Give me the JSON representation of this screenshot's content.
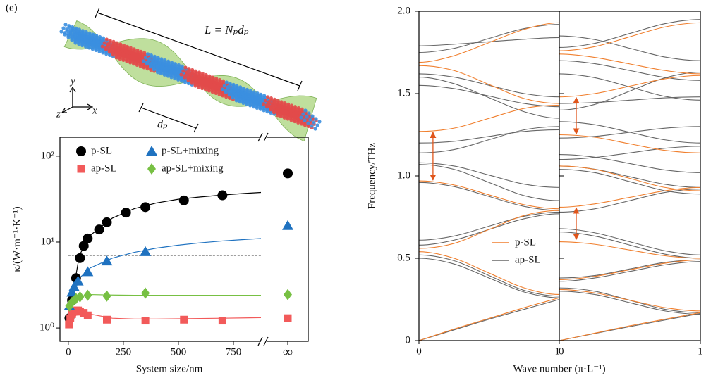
{
  "schematic": {
    "panel_label": "(e)",
    "length_label": "L = Nₚdₚ",
    "period_label": "dₚ",
    "axis_x": "x",
    "axis_y": "y",
    "axis_z": "z"
  },
  "chart_data": [
    {
      "type": "scatter",
      "ylog": true,
      "xlabel": "System size/nm",
      "ylabel": "κ/(W·m⁻¹·K⁻¹)",
      "xlim": [
        -38,
        875
      ],
      "xticks": [
        0,
        250,
        500,
        750
      ],
      "x_inf_label": "∞",
      "ylim": [
        0.7,
        166
      ],
      "yticks": [
        {
          "value": 1,
          "label": "10⁰"
        },
        {
          "value": 10,
          "label": "10¹"
        },
        {
          "value": 100,
          "label": "10²"
        }
      ],
      "reference_line": 7,
      "series": [
        {
          "name": "p-SL",
          "color": "#000000",
          "marker": "circle",
          "x": [
            5,
            17,
            35,
            53,
            70,
            88,
            140,
            175,
            262,
            350,
            525,
            700
          ],
          "values": [
            1.3,
            2.1,
            3.8,
            6.5,
            9,
            11,
            14,
            17,
            22,
            25.5,
            30.5,
            35
          ],
          "inf_value": 63,
          "fit_x": [
            0,
            50,
            100,
            200,
            300,
            400,
            500,
            600,
            700,
            800,
            875
          ],
          "fit_values": [
            1.2,
            7,
            12,
            19,
            24.5,
            28.5,
            31.5,
            33.5,
            35.3,
            36.8,
            37.8
          ]
        },
        {
          "name": "ap-SL",
          "color": "#f25a5a",
          "marker": "square",
          "x": [
            3,
            9,
            17,
            26,
            35,
            44,
            53,
            70,
            88,
            175,
            350,
            525,
            700
          ],
          "values": [
            1.1,
            1.3,
            1.45,
            1.55,
            1.6,
            1.6,
            1.55,
            1.5,
            1.4,
            1.25,
            1.22,
            1.25,
            1.22
          ],
          "inf_value": 1.3,
          "fit_x": [
            0,
            50,
            100,
            200,
            300,
            400,
            500,
            600,
            700,
            800,
            875
          ],
          "fit_values": [
            1.1,
            1.55,
            1.45,
            1.3,
            1.27,
            1.27,
            1.28,
            1.29,
            1.3,
            1.31,
            1.32
          ]
        },
        {
          "name": "p-SL+mixing",
          "color": "#1f72c0",
          "marker": "triangle",
          "x": [
            5,
            17,
            26,
            44,
            88,
            175,
            350
          ],
          "values": [
            1.8,
            2.6,
            3.0,
            3.5,
            4.5,
            6,
            7.7
          ],
          "inf_value": 15.5,
          "fit_x": [
            0,
            50,
            100,
            200,
            300,
            400,
            500,
            600,
            700,
            800,
            875
          ],
          "fit_values": [
            1.6,
            3.8,
            5,
            6.5,
            7.6,
            8.5,
            9.2,
            9.8,
            10.3,
            10.7,
            11
          ]
        },
        {
          "name": "ap-SL+mixing",
          "color": "#77c043",
          "marker": "diamond",
          "x": [
            5,
            17,
            35,
            53,
            88,
            175,
            350
          ],
          "values": [
            1.8,
            2.0,
            2.2,
            2.3,
            2.4,
            2.35,
            2.55
          ],
          "inf_value": 2.45,
          "fit_x": [
            0,
            50,
            100,
            200,
            300,
            400,
            500,
            600,
            700,
            800,
            875
          ],
          "fit_values": [
            1.8,
            2.3,
            2.45,
            2.42,
            2.4,
            2.4,
            2.4,
            2.4,
            2.4,
            2.4,
            2.4
          ]
        }
      ]
    },
    {
      "type": "line",
      "xlabel": "Wave number (π·L⁻¹)",
      "ylabel": "Frequency/THz",
      "ylim": [
        0,
        2
      ],
      "yticks": [
        0,
        0.5,
        {
          "value": 1,
          "label": "1.0"
        },
        1.5,
        {
          "value": 2,
          "label": "2.0"
        }
      ],
      "k": [
        0,
        0.25,
        0.5,
        0.75,
        1
      ],
      "series": [
        {
          "name": "p-SL",
          "color": "#f07f2e"
        },
        {
          "name": "ap-SL",
          "color": "#666666"
        }
      ],
      "arrow_color": "#e0551b",
      "panels": [
        {
          "xlim": [
            0,
            1
          ],
          "xticks": [
            0,
            1
          ],
          "bands": [
            [
              [
                0,
                0.07,
                0.135,
                0.2,
                0.26
              ],
              [
                0.54,
                0.5,
                0.41,
                0.32,
                0.28
              ],
              [
                0.56,
                0.59,
                0.675,
                0.76,
                0.79
              ],
              [
                0.97,
                0.945,
                0.885,
                0.825,
                0.8
              ],
              [
                1.27,
                1.29,
                1.35,
                1.41,
                1.43
              ],
              [
                1.67,
                1.64,
                1.555,
                1.47,
                1.44
              ],
              [
                1.69,
                1.73,
                1.81,
                1.89,
                1.93
              ]
            ],
            [
              [
                0,
                0.065,
                0.13,
                0.19,
                0.25
              ],
              [
                0.52,
                0.485,
                0.395,
                0.305,
                0.27
              ],
              [
                0.5,
                0.465,
                0.38,
                0.295,
                0.26
              ],
              [
                0.58,
                0.61,
                0.675,
                0.74,
                0.77
              ],
              [
                0.61,
                0.635,
                0.695,
                0.755,
                0.78
              ],
              [
                0.96,
                0.935,
                0.875,
                0.815,
                0.79
              ],
              [
                1.07,
                1.04,
                0.96,
                0.88,
                0.85
              ],
              [
                1.08,
                1.06,
                1.005,
                0.95,
                0.93
              ],
              [
                1.14,
                1.16,
                1.22,
                1.28,
                1.3
              ],
              [
                1.2,
                1.21,
                1.24,
                1.27,
                1.28
              ],
              [
                1.55,
                1.53,
                1.485,
                1.44,
                1.42
              ],
              [
                1.6,
                1.56,
                1.475,
                1.39,
                1.35
              ],
              [
                1.62,
                1.6,
                1.55,
                1.5,
                1.48
              ],
              [
                1.75,
                1.775,
                1.835,
                1.895,
                1.92
              ],
              [
                1.79,
                1.8,
                1.815,
                1.83,
                1.84
              ]
            ]
          ],
          "arrows": [
            {
              "x": 0.1,
              "y": [
                0.97,
                1.27
              ]
            }
          ]
        },
        {
          "xlim": [
            0,
            1
          ],
          "xticks": [
            0,
            1
          ],
          "bands": [
            [
              [
                0,
                0.045,
                0.09,
                0.13,
                0.17
              ],
              [
                0.31,
                0.29,
                0.245,
                0.2,
                0.18
              ],
              [
                0.6,
                0.585,
                0.55,
                0.515,
                0.5
              ],
              [
                0.37,
                0.39,
                0.43,
                0.47,
                0.49
              ],
              [
                0.81,
                0.83,
                0.87,
                0.91,
                0.93
              ],
              [
                1.06,
                1.04,
                0.985,
                0.93,
                0.91
              ],
              [
                1.25,
                1.235,
                1.195,
                1.155,
                1.14
              ],
              [
                1.48,
                1.5,
                1.545,
                1.59,
                1.61
              ],
              [
                1.74,
                1.72,
                1.68,
                1.64,
                1.62
              ],
              [
                1.76,
                1.785,
                1.845,
                1.905,
                1.93
              ]
            ],
            [
              [
                0,
                0.043,
                0.085,
                0.125,
                0.165
              ],
              [
                0.32,
                0.3,
                0.245,
                0.19,
                0.17
              ],
              [
                0.3,
                0.28,
                0.23,
                0.18,
                0.16
              ],
              [
                0.36,
                0.38,
                0.42,
                0.46,
                0.48
              ],
              [
                0.38,
                0.395,
                0.435,
                0.475,
                0.49
              ],
              [
                0.66,
                0.635,
                0.58,
                0.525,
                0.5
              ],
              [
                0.68,
                0.655,
                0.6,
                0.545,
                0.52
              ],
              [
                0.78,
                0.8,
                0.85,
                0.9,
                0.92
              ],
              [
                1.04,
                1.02,
                0.965,
                0.91,
                0.89
              ],
              [
                1.06,
                1.041,
                0.995,
                0.949,
                0.93
              ],
              [
                1.1,
                1.112,
                1.14,
                1.168,
                1.18
              ],
              [
                1.13,
                1.114,
                1.075,
                1.036,
                1.02
              ],
              [
                1.23,
                1.24,
                1.265,
                1.29,
                1.3
              ],
              [
                1.33,
                1.311,
                1.265,
                1.219,
                1.2
              ],
              [
                1.4,
                1.434,
                1.515,
                1.596,
                1.63
              ],
              [
                1.44,
                1.446,
                1.46,
                1.474,
                1.48
              ],
              [
                1.62,
                1.597,
                1.54,
                1.483,
                1.46
              ],
              [
                1.7,
                1.682,
                1.64,
                1.598,
                1.58
              ],
              [
                1.78,
                1.805,
                1.865,
                1.925,
                1.95
              ],
              [
                1.85,
                1.828,
                1.775,
                1.722,
                1.7
              ]
            ]
          ],
          "arrows": [
            {
              "x": 0.12,
              "y": [
                0.61,
                0.81
              ]
            },
            {
              "x": 0.12,
              "y": [
                1.25,
                1.48
              ]
            }
          ]
        }
      ]
    }
  ]
}
